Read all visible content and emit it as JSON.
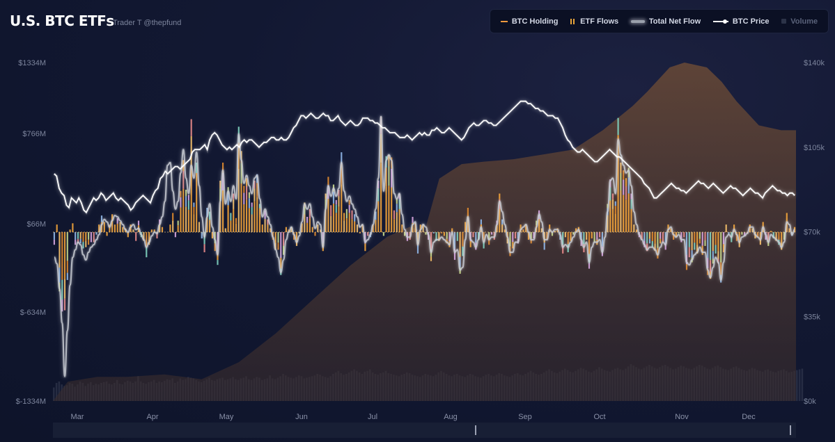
{
  "header": {
    "title": "U.S. BTC ETFs",
    "subtitle": "Trader T @thepfund"
  },
  "legend": [
    {
      "label": "BTC Holding",
      "icon": "line-swatch-icon",
      "color": "#f09a3e",
      "active": true
    },
    {
      "label": "ETF Flows",
      "icon": "bars-swatch-icon",
      "color": "#e8a53a",
      "active": true
    },
    {
      "label": "Total Net Flow",
      "icon": "glow-line-swatch-icon",
      "color": "#c9ccd4",
      "active": true
    },
    {
      "label": "BTC Price",
      "icon": "price-line-swatch-icon",
      "color": "#ffffff",
      "active": true
    },
    {
      "label": "Volume",
      "icon": "square-swatch-icon",
      "color": "#2c3348",
      "active": false
    }
  ],
  "colors": {
    "flow_palette": [
      "#f2a33a",
      "#e08a2e",
      "#f5c06a",
      "#7fd3c0",
      "#8fb7e8",
      "#e88a8a",
      "#d6a5e0",
      "#c8d88a"
    ],
    "holding_fill": "#5a4236",
    "volume": "#2a3046",
    "price": "#ffffff",
    "net_flow": "#c9ccd4"
  },
  "chart_data": {
    "type": "bar",
    "left_axis": {
      "ticks": [
        "$1334M",
        "$766M",
        "$66M",
        "$-634M",
        "$-1334M"
      ],
      "range": [
        -1334,
        1334
      ]
    },
    "right_axis": {
      "ticks": [
        "$140k",
        "$105k",
        "$70k",
        "$35k",
        "$0k"
      ],
      "range": [
        0,
        140
      ]
    },
    "months": [
      "Mar",
      "Apr",
      "May",
      "Jun",
      "Jul",
      "Aug",
      "Sep",
      "Oct",
      "Nov",
      "Dec"
    ],
    "flows_M": [
      -100,
      60,
      -470,
      -630,
      -620,
      -380,
      20,
      70,
      -100,
      -90,
      -90,
      -130,
      -120,
      -100,
      -80,
      -80,
      -20,
      60,
      130,
      80,
      -30,
      60,
      140,
      60,
      110,
      80,
      40,
      30,
      -40,
      60,
      20,
      -70,
      90,
      -40,
      -70,
      -200,
      -100,
      20,
      20,
      -50,
      100,
      40,
      0,
      0,
      60,
      150,
      -40,
      90,
      320,
      560,
      330,
      290,
      880,
      230,
      540,
      80,
      -50,
      -160,
      190,
      160,
      -50,
      -150,
      -260,
      400,
      540,
      30,
      350,
      150,
      300,
      110,
      820,
      630,
      360,
      420,
      310,
      230,
      400,
      450,
      220,
      60,
      170,
      100,
      30,
      -60,
      -140,
      -140,
      -340,
      -180,
      40,
      20,
      40,
      -60,
      -110,
      -10,
      70,
      230,
      120,
      180,
      40,
      -30,
      60,
      20,
      -150,
      300,
      430,
      210,
      370,
      250,
      330,
      620,
      150,
      180,
      250,
      170,
      140,
      60,
      -10,
      60,
      -150,
      -30,
      -40,
      60,
      160,
      400,
      900,
      -30,
      590,
      600,
      580,
      170,
      260,
      300,
      60,
      -30,
      -70,
      -60,
      120,
      70,
      -170,
      60,
      60,
      -20,
      -60,
      -230,
      -10,
      -70,
      -70,
      -10,
      -30,
      -90,
      -120,
      30,
      -220,
      -70,
      -330,
      -190,
      80,
      190,
      -120,
      -40,
      -140,
      -60,
      100,
      -130,
      0,
      -100,
      -20,
      -60,
      90,
      300,
      100,
      20,
      -90,
      -190,
      -130,
      -50,
      -90,
      60,
      20,
      60,
      -60,
      -90,
      -50,
      90,
      170,
      30,
      -140,
      -60,
      60,
      -30,
      10,
      30,
      -60,
      -170,
      -40,
      -160,
      -70,
      -20,
      30,
      40,
      -110,
      -160,
      -60,
      -290,
      -50,
      -80,
      -100,
      -40,
      -190,
      0,
      220,
      410,
      300,
      240,
      890,
      540,
      480,
      420,
      500,
      300,
      60,
      20,
      -40,
      -60,
      -120,
      -150,
      -90,
      -120,
      -150,
      -210,
      -90,
      -80,
      -140,
      60,
      30,
      -60,
      -40,
      -10,
      -80,
      -40,
      -300,
      -200,
      -240,
      -140,
      -170,
      -90,
      -180,
      -110,
      -340,
      -370,
      -250,
      -170,
      -250,
      -400,
      -160,
      60,
      -20,
      -80,
      60,
      -70,
      -120,
      -20,
      -30,
      -10,
      60,
      30,
      -50,
      -40,
      -100,
      80,
      -60,
      -110,
      10,
      -50,
      -70,
      -100,
      -140,
      -60,
      150,
      30,
      -30,
      40
    ],
    "btc_price_k": [
      94,
      93,
      88,
      86,
      85,
      81,
      80,
      84,
      83,
      82,
      84,
      82,
      79,
      78,
      80,
      82,
      84,
      83,
      84,
      86,
      85,
      83,
      84,
      85,
      86,
      84,
      83,
      84,
      83,
      82,
      81,
      79,
      80,
      82,
      83,
      84,
      85,
      84,
      83,
      82,
      85,
      87,
      88,
      92,
      93,
      95,
      94,
      95,
      96,
      97,
      97,
      96,
      97,
      98,
      99,
      100,
      103,
      104,
      104,
      104,
      105,
      106,
      104,
      108,
      110,
      111,
      110,
      108,
      106,
      105,
      104,
      105,
      104,
      105,
      106,
      105,
      107,
      108,
      107,
      108,
      108,
      107,
      106,
      105,
      106,
      107,
      107,
      108,
      109,
      109,
      108,
      108,
      109,
      108,
      108,
      109,
      111,
      113,
      114,
      116,
      118,
      118,
      117,
      118,
      119,
      118,
      117,
      117,
      118,
      119,
      118,
      118,
      116,
      116,
      117,
      118,
      116,
      115,
      114,
      115,
      116,
      115,
      114,
      114,
      115,
      117,
      117,
      117,
      116,
      116,
      115,
      115,
      114,
      113,
      113,
      112,
      111,
      111,
      111,
      110,
      109,
      109,
      109,
      110,
      109,
      108,
      109,
      110,
      111,
      110,
      111,
      110,
      110,
      112,
      112,
      113,
      112,
      111,
      111,
      112,
      113,
      112,
      111,
      110,
      109,
      108,
      109,
      111,
      113,
      114,
      115,
      114,
      114,
      115,
      116,
      116,
      115,
      115,
      114,
      114,
      115,
      116,
      117,
      118,
      119,
      120,
      121,
      122,
      123,
      124,
      124,
      124,
      123,
      123,
      122,
      121,
      121,
      120,
      120,
      119,
      118,
      118,
      118,
      117,
      117,
      115,
      113,
      110,
      108,
      107,
      105,
      104,
      103,
      103,
      104,
      103,
      102,
      101,
      100,
      99,
      99,
      100,
      101,
      102,
      103,
      104,
      103,
      102,
      101,
      101,
      100,
      99,
      98,
      97,
      96,
      95,
      94,
      93,
      92,
      90,
      89,
      88,
      86,
      84,
      84,
      85,
      86,
      87,
      88,
      89,
      90,
      89,
      88,
      88,
      87,
      87,
      86,
      87,
      88,
      89,
      90,
      91,
      90,
      90,
      89,
      88,
      89,
      90,
      89,
      88,
      87,
      86,
      87,
      88,
      89,
      88,
      88,
      87,
      86,
      85,
      86,
      87,
      88,
      87,
      86,
      86,
      85,
      84,
      86,
      87,
      88,
      89,
      88,
      87,
      87,
      86,
      86,
      85,
      86,
      86,
      85
    ],
    "net_flow_M": [
      -200,
      -250,
      -450,
      -720,
      -1140,
      -780,
      -420,
      -200,
      -140,
      -80,
      -100,
      -180,
      -220,
      -160,
      -120,
      -100,
      -60,
      -20,
      60,
      100,
      80,
      40,
      90,
      130,
      120,
      90,
      60,
      20,
      0,
      40,
      60,
      20,
      30,
      -20,
      -60,
      -120,
      -80,
      -30,
      0,
      -10,
      60,
      120,
      240,
      520,
      540,
      320,
      180,
      240,
      460,
      640,
      420,
      300,
      520,
      420,
      620,
      360,
      120,
      -40,
      120,
      220,
      40,
      -60,
      -180,
      240,
      480,
      220,
      320,
      240,
      360,
      260,
      760,
      560,
      380,
      440,
      360,
      300,
      420,
      440,
      260,
      120,
      180,
      120,
      60,
      -40,
      -140,
      -200,
      -320,
      -220,
      -60,
      0,
      40,
      -20,
      -80,
      -30,
      80,
      220,
      180,
      220,
      120,
      30,
      80,
      60,
      -120,
      180,
      360,
      280,
      340,
      280,
      340,
      540,
      320,
      240,
      280,
      220,
      180,
      120,
      40,
      60,
      -80,
      -60,
      -20,
      60,
      180,
      420,
      900,
      320,
      560,
      600,
      560,
      300,
      260,
      300,
      140,
      20,
      -40,
      -40,
      60,
      80,
      -100,
      20,
      60,
      40,
      -20,
      -160,
      -80,
      -60,
      -60,
      -40,
      -60,
      -80,
      -100,
      0,
      -160,
      -140,
      -300,
      -280,
      -60,
      120,
      -60,
      -80,
      -120,
      -60,
      40,
      -80,
      -20,
      -60,
      -40,
      -40,
      60,
      240,
      160,
      60,
      -40,
      -160,
      -160,
      -80,
      -80,
      20,
      40,
      60,
      0,
      -60,
      -60,
      40,
      140,
      80,
      -60,
      -60,
      20,
      0,
      20,
      20,
      -20,
      -120,
      -100,
      -120,
      -80,
      -40,
      0,
      20,
      -60,
      -120,
      -80,
      -240,
      -120,
      -80,
      -80,
      -60,
      -160,
      -40,
      160,
      400,
      420,
      300,
      720,
      600,
      520,
      460,
      480,
      360,
      160,
      60,
      -20,
      -60,
      -100,
      -140,
      -120,
      -120,
      -140,
      -180,
      -120,
      -80,
      -100,
      20,
      40,
      -20,
      -40,
      -20,
      -60,
      -60,
      -240,
      -260,
      -220,
      -180,
      -160,
      -120,
      -160,
      -160,
      -300,
      -360,
      -280,
      -200,
      -240,
      -380,
      -240,
      -40,
      -20,
      -40,
      20,
      -20,
      -80,
      -40,
      -30,
      -10,
      40,
      40,
      -20,
      -40,
      -60,
      40,
      -20,
      -80,
      -20,
      -40,
      -60,
      -80,
      -120,
      -80,
      80,
      60,
      -20,
      20
    ],
    "holding_k": [
      0,
      0,
      0,
      0,
      0,
      0,
      0,
      0,
      0,
      0,
      0,
      0,
      0,
      0,
      0,
      0,
      0,
      0,
      0,
      0,
      0,
      0,
      0,
      0,
      0,
      0,
      0,
      0,
      0,
      0,
      0,
      0,
      0,
      0,
      0,
      0,
      0,
      0,
      0,
      0,
      0,
      0,
      0,
      0,
      0,
      0,
      0,
      0,
      0,
      0,
      0,
      0,
      0,
      0,
      0,
      0,
      0,
      0,
      0,
      0,
      0,
      0,
      0,
      0,
      0,
      0,
      0,
      0,
      0,
      0,
      0,
      0,
      0,
      0,
      0,
      0,
      0,
      0,
      0,
      0,
      0,
      0,
      0,
      0,
      0,
      0,
      0,
      0,
      0,
      0,
      0,
      0,
      0,
      0,
      0,
      0,
      0,
      0,
      0,
      0,
      0,
      0,
      0,
      0,
      0,
      0,
      0,
      0,
      0,
      0,
      0,
      0,
      0,
      0,
      0,
      0,
      0,
      0,
      0,
      0,
      0,
      0,
      0,
      0,
      0,
      0,
      0,
      0,
      0,
      0,
      0,
      0,
      0,
      0,
      0,
      0,
      0,
      0,
      0,
      0,
      0,
      0,
      0,
      0,
      0,
      0,
      0,
      0,
      0,
      0,
      0,
      0,
      0,
      0,
      0,
      0,
      0,
      0,
      0,
      0,
      0,
      0,
      0,
      0,
      0,
      0,
      0,
      0,
      0,
      0,
      0,
      0,
      0,
      0,
      0,
      0,
      0,
      0,
      0,
      0,
      0,
      0,
      0,
      0,
      0,
      0,
      0,
      0,
      0,
      0,
      0,
      0,
      0,
      0,
      0,
      0,
      0,
      0,
      0,
      0,
      0,
      0,
      0,
      0,
      0,
      0,
      0,
      0,
      0,
      0,
      0,
      0,
      0,
      0,
      0,
      0,
      0,
      0,
      0,
      0,
      0,
      0,
      0,
      0,
      0,
      0,
      0,
      0,
      0,
      0,
      0,
      0,
      0,
      0,
      0,
      0,
      0,
      0,
      0,
      0,
      0,
      0,
      0,
      0,
      0,
      0,
      0,
      0,
      0,
      0,
      0,
      0,
      0,
      0,
      0,
      0,
      0,
      0,
      0,
      0,
      0,
      0,
      0,
      0,
      0,
      0,
      0,
      0,
      0,
      0,
      0,
      0,
      0,
      0,
      0,
      0,
      0,
      0,
      0,
      0,
      0,
      0,
      0,
      0,
      0,
      0,
      0,
      0,
      0,
      0,
      0,
      0,
      0,
      0,
      0,
      0,
      0,
      0,
      0,
      0,
      0,
      0
    ],
    "holding_curve_k": [
      [
        0,
        0
      ],
      [
        0.02,
        8
      ],
      [
        0.06,
        10
      ],
      [
        0.1,
        10
      ],
      [
        0.15,
        11
      ],
      [
        0.2,
        9
      ],
      [
        0.25,
        16
      ],
      [
        0.3,
        28
      ],
      [
        0.35,
        42
      ],
      [
        0.4,
        56
      ],
      [
        0.45,
        68
      ],
      [
        0.48,
        72
      ],
      [
        0.5,
        70
      ],
      [
        0.52,
        92
      ],
      [
        0.55,
        98
      ],
      [
        0.58,
        99
      ],
      [
        0.62,
        100
      ],
      [
        0.66,
        102
      ],
      [
        0.7,
        104
      ],
      [
        0.74,
        112
      ],
      [
        0.78,
        122
      ],
      [
        0.8,
        128
      ],
      [
        0.83,
        138
      ],
      [
        0.85,
        140
      ],
      [
        0.88,
        138
      ],
      [
        0.9,
        132
      ],
      [
        0.92,
        124
      ],
      [
        0.95,
        114
      ],
      [
        0.98,
        112
      ],
      [
        1.0,
        112
      ]
    ],
    "volume_M": [
      180,
      240,
      260,
      220,
      200,
      210,
      240,
      230,
      190,
      220,
      260,
      240,
      200,
      230,
      250,
      210,
      230,
      220,
      240,
      250,
      260,
      230,
      220,
      240,
      280,
      230,
      220,
      250,
      270,
      260,
      240,
      260,
      330,
      260,
      240,
      230,
      250,
      260,
      280,
      240,
      260,
      250,
      270,
      290,
      280,
      300,
      240,
      260,
      300,
      280,
      290,
      320,
      310,
      300,
      280,
      260,
      250,
      270,
      290,
      310,
      280,
      270,
      290,
      300,
      310,
      280,
      290,
      300,
      320,
      290,
      280,
      300,
      310,
      330,
      290,
      280,
      300,
      320,
      310,
      280,
      290,
      300,
      340,
      300,
      290,
      310,
      330,
      360,
      340,
      320,
      310,
      300,
      320,
      340,
      330,
      300,
      310,
      320,
      330,
      340,
      360,
      350,
      330,
      320,
      310,
      330,
      360,
      380,
      400,
      370,
      350,
      360,
      380,
      400,
      420,
      400,
      380,
      360,
      390,
      400,
      420,
      380,
      360,
      350,
      370,
      380,
      400,
      370,
      360,
      350,
      340,
      330,
      350,
      360,
      380,
      370,
      350,
      340,
      330,
      320,
      340,
      360,
      350,
      340,
      330,
      350,
      380,
      400,
      380,
      360,
      340,
      330,
      350,
      360,
      340,
      330,
      320,
      340,
      360,
      350,
      330,
      320,
      310,
      330,
      350,
      360,
      340,
      330,
      350,
      370,
      360,
      340,
      330,
      320,
      340,
      360,
      370,
      350,
      340,
      360,
      380,
      400,
      380,
      360,
      350,
      360,
      380,
      400,
      420,
      400,
      380,
      370,
      390,
      410,
      430,
      410,
      390,
      380,
      400,
      420,
      440,
      430,
      410,
      390,
      380,
      400,
      420,
      450,
      430,
      410,
      400,
      390,
      410,
      430,
      440,
      420,
      410,
      430,
      460,
      490,
      470,
      450,
      430,
      420,
      440,
      460,
      480,
      460,
      440,
      430,
      450,
      470,
      480,
      460,
      440,
      420,
      430,
      450,
      470,
      460,
      440,
      430,
      420,
      440,
      460,
      480,
      470,
      450,
      430,
      420,
      440,
      460,
      470,
      450,
      430,
      420,
      410,
      430,
      450,
      460,
      440,
      420,
      410,
      400,
      420,
      440,
      430,
      410,
      400,
      390,
      410,
      420,
      400,
      390,
      380,
      400,
      410,
      420,
      400,
      380,
      390,
      400,
      410,
      420,
      430
    ]
  },
  "scrollbar": {
    "label": "range-navigator"
  }
}
